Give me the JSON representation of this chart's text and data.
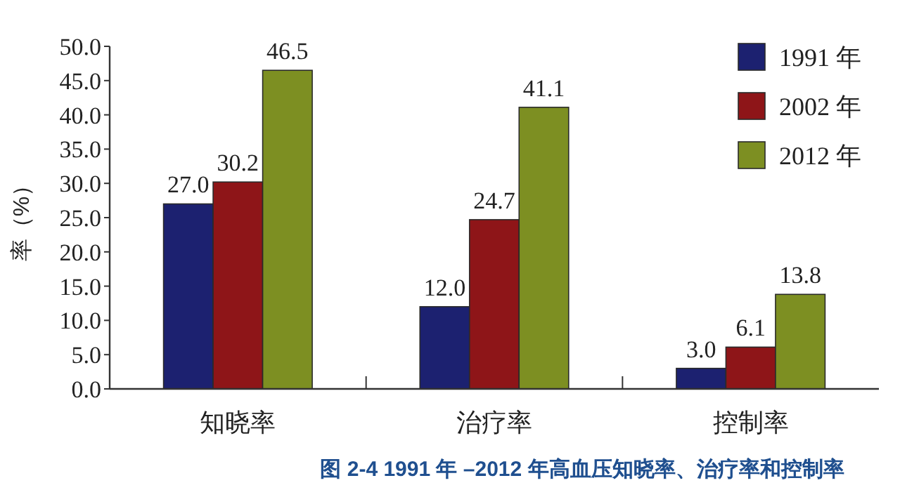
{
  "chart_data": {
    "type": "bar",
    "title": "图 2-4 1991 年 –2012 年高血压知晓率、治疗率和控制率",
    "ylabel": "率（%）",
    "categories": [
      "知晓率",
      "治疗率",
      "控制率"
    ],
    "series": [
      {
        "name": "1991 年",
        "color": "#1c2170",
        "values": [
          27.0,
          12.0,
          3.0
        ],
        "value_labels": [
          "27.0",
          "12.0",
          "3.0"
        ]
      },
      {
        "name": "2002 年",
        "color": "#8e1518",
        "values": [
          30.2,
          24.7,
          6.1
        ],
        "value_labels": [
          "30.2",
          "24.7",
          "6.1"
        ]
      },
      {
        "name": "2012 年",
        "color": "#7d8f22",
        "values": [
          46.5,
          41.1,
          13.8
        ],
        "value_labels": [
          "46.5",
          "41.1",
          "13.8"
        ]
      }
    ],
    "ylim": [
      0,
      50
    ],
    "yticks": [
      {
        "value": 0,
        "label": "0.0"
      },
      {
        "value": 5,
        "label": "5.0"
      },
      {
        "value": 10,
        "label": "10.0"
      },
      {
        "value": 15,
        "label": "15.0"
      },
      {
        "value": 20,
        "label": "20.0"
      },
      {
        "value": 25,
        "label": "25.0"
      },
      {
        "value": 30,
        "label": "30.0"
      },
      {
        "value": 35,
        "label": "35.0"
      },
      {
        "value": 40,
        "label": "40.0"
      },
      {
        "value": 45,
        "label": "45.0"
      },
      {
        "value": 50,
        "label": "50.0"
      }
    ],
    "legend": "top right"
  }
}
